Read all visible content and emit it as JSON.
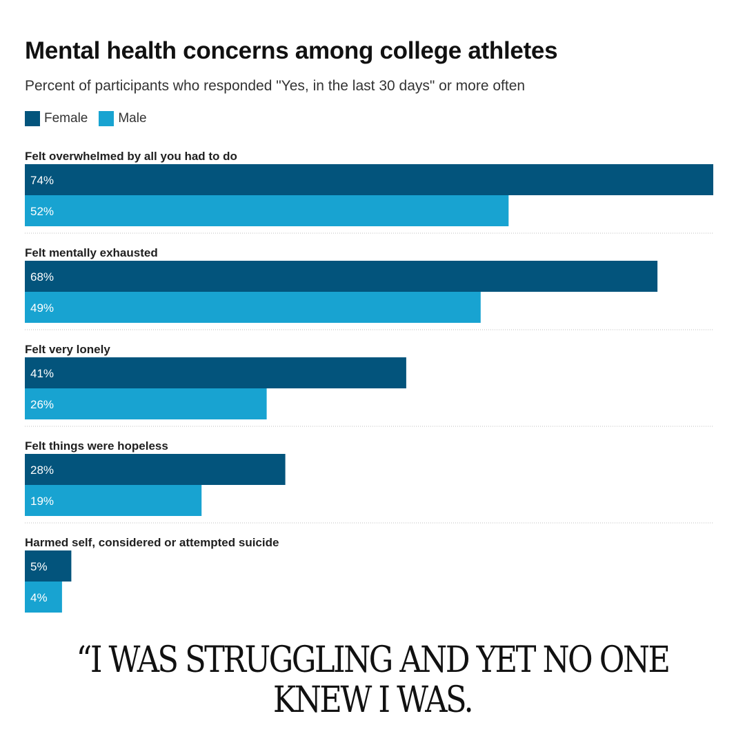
{
  "chart_data": {
    "type": "bar",
    "orientation": "horizontal",
    "title": "Mental health concerns among college athletes",
    "subtitle": "Percent of participants who responded \"Yes, in the last 30 days\" or more often",
    "legend_placement": "top-left",
    "grid": false,
    "xlim": [
      0,
      74
    ],
    "categories": [
      "Felt overwhelmed by all you had to do",
      "Felt mentally exhausted",
      "Felt very lonely",
      "Felt things were hopeless",
      "Harmed self, considered or attempted suicide"
    ],
    "series": [
      {
        "name": "Female",
        "color": "#03547c",
        "values": [
          74,
          68,
          41,
          28,
          5
        ],
        "labels": [
          "74%",
          "68%",
          "41%",
          "28%",
          "5%"
        ]
      },
      {
        "name": "Male",
        "color": "#18a3d1",
        "values": [
          52,
          49,
          26,
          19,
          4
        ],
        "labels": [
          "52%",
          "49%",
          "26%",
          "19%",
          "4%"
        ]
      }
    ]
  },
  "quote": "“I WAS STRUGGLING AND YET NO ONE KNEW I WAS."
}
